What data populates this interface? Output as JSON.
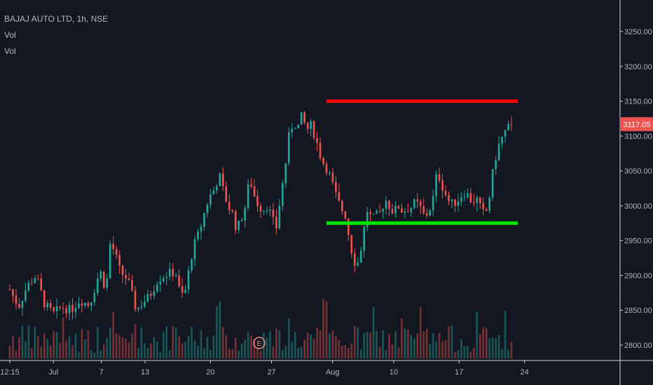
{
  "legend": {
    "symbol": "BAJAJ AUTO LTD, 1h, NSE",
    "indicators": [
      "Vol",
      "Vol"
    ]
  },
  "last_price_label": "3117.05",
  "event_marker_label": "E",
  "colors": {
    "background": "#131722",
    "up": "#26a69a",
    "down": "#ef5350",
    "resistance_line": "#ff0000",
    "support_line": "#00e600",
    "price_badge": "#ef5350",
    "axis_text": "#b2b5be",
    "axis_line": "#d1d4dc"
  },
  "chart_data": {
    "type": "candlestick",
    "title": "BAJAJ AUTO LTD, 1h, NSE",
    "x_ticks": [
      "12:15",
      "Jul",
      "7",
      "13",
      "20",
      "27",
      "Aug",
      "10",
      "17",
      "24"
    ],
    "y_ticks": [
      "3250.00",
      "3200.00",
      "3150.00",
      "3100.00",
      "3050.00",
      "3000.00",
      "2950.00",
      "2900.00",
      "2850.00",
      "2800.00"
    ],
    "ylim": [
      2776,
      3302
    ],
    "last_price": 3117.05,
    "horizontal_lines": [
      {
        "value": 3150,
        "from": "28",
        "to": "17",
        "color": "red"
      },
      {
        "value": 2975,
        "from": "28",
        "to": "17",
        "color": "green"
      }
    ],
    "price_path": [
      [
        0,
        2880
      ],
      [
        2,
        2855
      ],
      [
        4,
        2885
      ],
      [
        6,
        2900
      ],
      [
        8,
        2858
      ],
      [
        10,
        2845
      ],
      [
        12,
        2855
      ],
      [
        14,
        2850
      ],
      [
        16,
        2865
      ],
      [
        18,
        2858
      ],
      [
        19,
        2870
      ],
      [
        20,
        2895
      ],
      [
        21,
        2905
      ],
      [
        22,
        2875
      ],
      [
        23,
        2945
      ],
      [
        24,
        2935
      ],
      [
        25,
        2910
      ],
      [
        26,
        2900
      ],
      [
        27,
        2895
      ],
      [
        28,
        2872
      ],
      [
        29,
        2850
      ],
      [
        30,
        2858
      ],
      [
        32,
        2870
      ],
      [
        34,
        2895
      ],
      [
        36,
        2902
      ],
      [
        38,
        2905
      ],
      [
        39,
        2875
      ],
      [
        40,
        2870
      ],
      [
        41,
        2905
      ],
      [
        42,
        2940
      ],
      [
        43,
        2955
      ],
      [
        44,
        2975
      ],
      [
        45,
        3000
      ],
      [
        46,
        3015
      ],
      [
        47,
        3025
      ],
      [
        48,
        3045
      ],
      [
        49,
        3020
      ],
      [
        50,
        3000
      ],
      [
        51,
        2990
      ],
      [
        52,
        2965
      ],
      [
        53,
        2980
      ],
      [
        54,
        3000
      ],
      [
        55,
        3040
      ],
      [
        56,
        3015
      ],
      [
        57,
        3000
      ],
      [
        58,
        2995
      ],
      [
        59,
        3000
      ],
      [
        60,
        2985
      ],
      [
        61,
        2965
      ],
      [
        62,
        3010
      ],
      [
        63,
        3050
      ],
      [
        64,
        3100
      ],
      [
        65,
        3120
      ],
      [
        66,
        3112
      ],
      [
        67,
        3130
      ],
      [
        68,
        3108
      ],
      [
        69,
        3115
      ],
      [
        70,
        3100
      ],
      [
        71,
        3075
      ],
      [
        72,
        3060
      ],
      [
        73,
        3050
      ],
      [
        74,
        3030
      ],
      [
        75,
        3010
      ],
      [
        76,
        2995
      ],
      [
        77,
        2985
      ],
      [
        78,
        2945
      ],
      [
        79,
        2920
      ],
      [
        80,
        2918
      ],
      [
        81,
        2960
      ],
      [
        82,
        2995
      ],
      [
        83,
        2980
      ],
      [
        84,
        2985
      ],
      [
        85,
        2990
      ],
      [
        86,
        3010
      ],
      [
        87,
        3000
      ],
      [
        88,
        2990
      ],
      [
        89,
        3000
      ],
      [
        90,
        2992
      ],
      [
        91,
        2995
      ],
      [
        92,
        2998
      ],
      [
        93,
        3005
      ],
      [
        94,
        2998
      ],
      [
        95,
        2985
      ],
      [
        96,
        2990
      ],
      [
        97,
        3010
      ],
      [
        98,
        3050
      ],
      [
        99,
        3030
      ],
      [
        100,
        3015
      ],
      [
        101,
        3002
      ],
      [
        102,
        3005
      ],
      [
        103,
        3010
      ],
      [
        104,
        3020
      ],
      [
        105,
        3015
      ],
      [
        106,
        3005
      ],
      [
        107,
        3010
      ],
      [
        108,
        2995
      ],
      [
        109,
        2985
      ],
      [
        110,
        3015
      ],
      [
        111,
        3060
      ],
      [
        112,
        3085
      ],
      [
        113,
        3100
      ],
      [
        114,
        3110
      ],
      [
        115,
        3117.05
      ]
    ],
    "volume_ylim": [
      0,
      500000
    ]
  }
}
